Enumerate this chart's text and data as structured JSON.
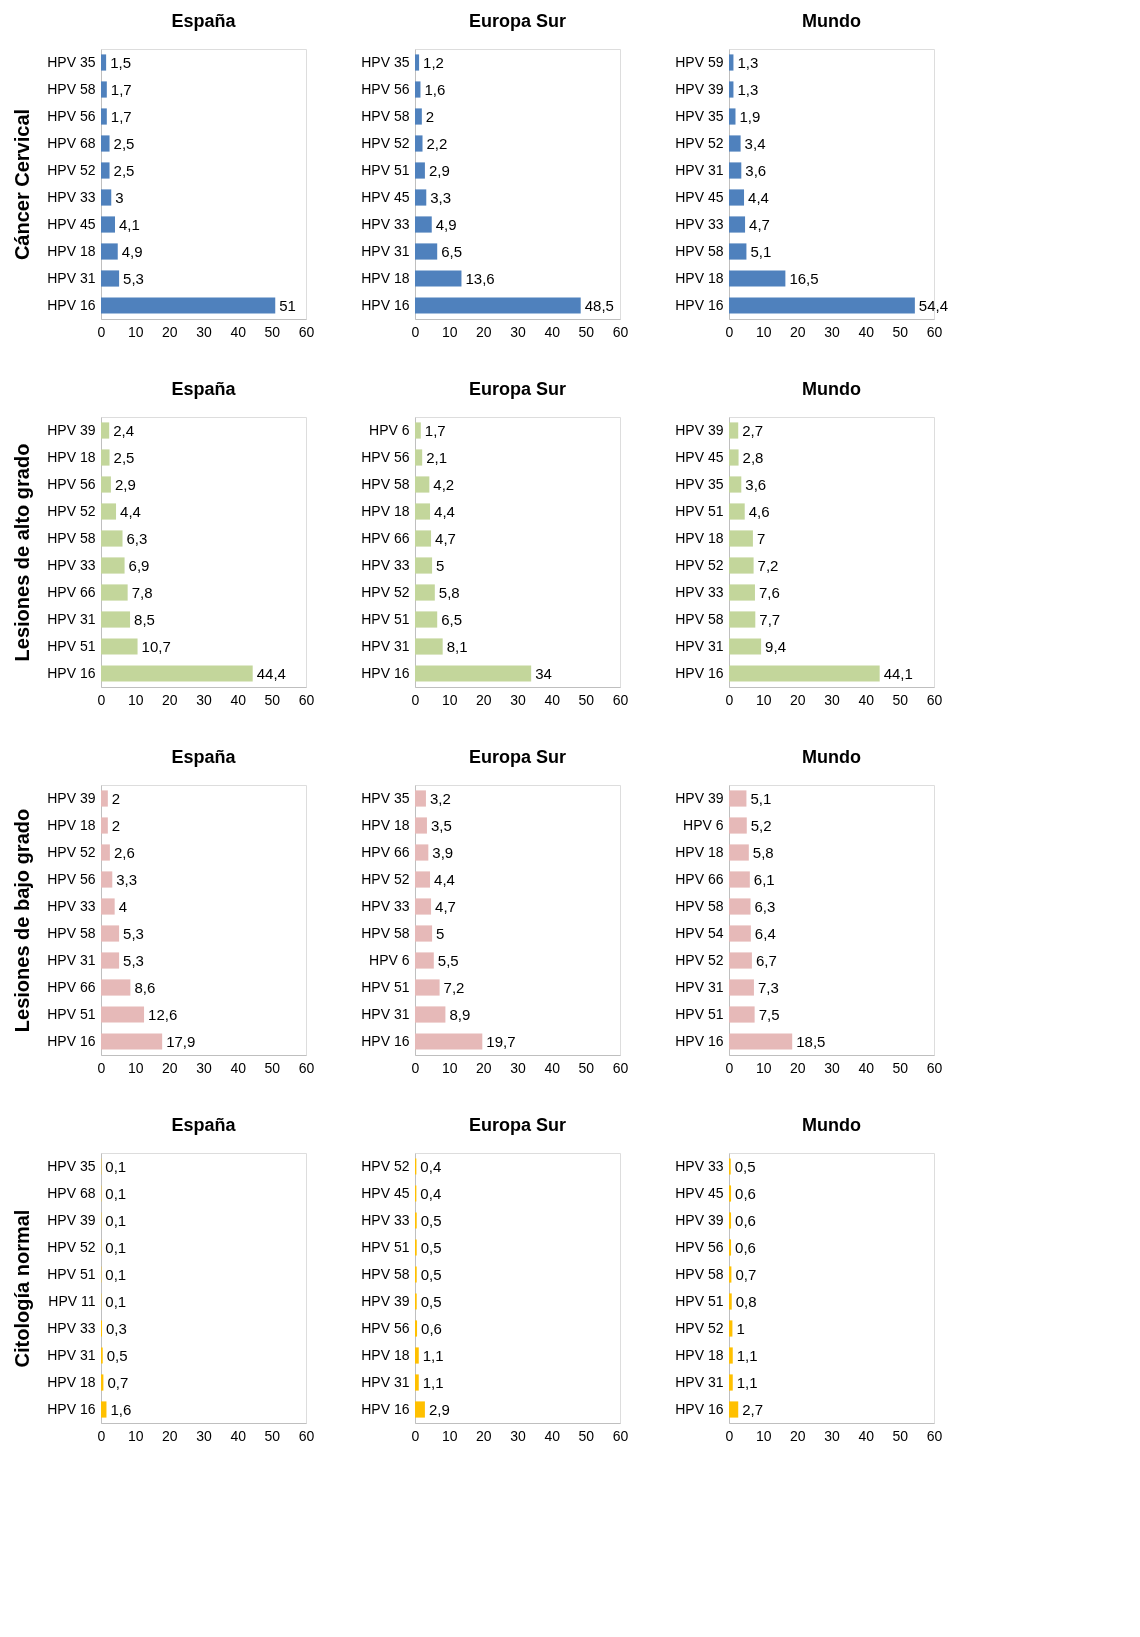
{
  "chart_data": [
    {
      "type": "bar",
      "orientation": "horizontal",
      "title": "España",
      "ylabel": "Cáncer Cervical",
      "color": "#4f81bd",
      "categories": [
        "HPV 35",
        "HPV 58",
        "HPV 56",
        "HPV 68",
        "HPV 52",
        "HPV 33",
        "HPV 45",
        "HPV 18",
        "HPV 31",
        "HPV 16"
      ],
      "values": [
        1.5,
        1.7,
        1.7,
        2.5,
        2.5,
        3,
        4.1,
        4.9,
        5.3,
        51
      ],
      "value_labels": [
        "1,5",
        "1,7",
        "1,7",
        "2,5",
        "2,5",
        "3",
        "4,1",
        "4,9",
        "5,3",
        "51"
      ],
      "xlim": [
        0,
        60
      ],
      "xticks": [
        0,
        10,
        20,
        30,
        40,
        50,
        60
      ],
      "grid": false
    },
    {
      "type": "bar",
      "orientation": "horizontal",
      "title": "Europa Sur",
      "color": "#4f81bd",
      "categories": [
        "HPV 35",
        "HPV 56",
        "HPV 58",
        "HPV 52",
        "HPV 51",
        "HPV 45",
        "HPV 33",
        "HPV 31",
        "HPV 18",
        "HPV 16"
      ],
      "values": [
        1.2,
        1.6,
        2,
        2.2,
        2.9,
        3.3,
        4.9,
        6.5,
        13.6,
        48.5
      ],
      "value_labels": [
        "1,2",
        "1,6",
        "2",
        "2,2",
        "2,9",
        "3,3",
        "4,9",
        "6,5",
        "13,6",
        "48,5"
      ],
      "xlim": [
        0,
        60
      ],
      "xticks": [
        0,
        10,
        20,
        30,
        40,
        50,
        60
      ],
      "grid": false
    },
    {
      "type": "bar",
      "orientation": "horizontal",
      "title": "Mundo",
      "color": "#4f81bd",
      "categories": [
        "HPV 59",
        "HPV 39",
        "HPV 35",
        "HPV 52",
        "HPV 31",
        "HPV 45",
        "HPV 33",
        "HPV 58",
        "HPV 18",
        "HPV 16"
      ],
      "values": [
        1.3,
        1.3,
        1.9,
        3.4,
        3.6,
        4.4,
        4.7,
        5.1,
        16.5,
        54.4
      ],
      "value_labels": [
        "1,3",
        "1,3",
        "1,9",
        "3,4",
        "3,6",
        "4,4",
        "4,7",
        "5,1",
        "16,5",
        "54,4"
      ],
      "xlim": [
        0,
        60
      ],
      "xticks": [
        0,
        10,
        20,
        30,
        40,
        50,
        60
      ],
      "grid": false
    },
    {
      "type": "bar",
      "orientation": "horizontal",
      "title": "España",
      "ylabel": "Lesiones de alto grado",
      "color": "#c3d69b",
      "categories": [
        "HPV 39",
        "HPV 18",
        "HPV 56",
        "HPV 52",
        "HPV 58",
        "HPV 33",
        "HPV 66",
        "HPV 31",
        "HPV 51",
        "HPV 16"
      ],
      "values": [
        2.4,
        2.5,
        2.9,
        4.4,
        6.3,
        6.9,
        7.8,
        8.5,
        10.7,
        44.4
      ],
      "value_labels": [
        "2,4",
        "2,5",
        "2,9",
        "4,4",
        "6,3",
        "6,9",
        "7,8",
        "8,5",
        "10,7",
        "44,4"
      ],
      "xlim": [
        0,
        60
      ],
      "xticks": [
        0,
        10,
        20,
        30,
        40,
        50,
        60
      ],
      "grid": false
    },
    {
      "type": "bar",
      "orientation": "horizontal",
      "title": "Europa Sur",
      "color": "#c3d69b",
      "categories": [
        "HPV 6",
        "HPV 56",
        "HPV 58",
        "HPV 18",
        "HPV 66",
        "HPV 33",
        "HPV 52",
        "HPV 51",
        "HPV 31",
        "HPV 16"
      ],
      "values": [
        1.7,
        2.1,
        4.2,
        4.4,
        4.7,
        5,
        5.8,
        6.5,
        8.1,
        34
      ],
      "value_labels": [
        "1,7",
        "2,1",
        "4,2",
        "4,4",
        "4,7",
        "5",
        "5,8",
        "6,5",
        "8,1",
        "34"
      ],
      "xlim": [
        0,
        60
      ],
      "xticks": [
        0,
        10,
        20,
        30,
        40,
        50,
        60
      ],
      "grid": false
    },
    {
      "type": "bar",
      "orientation": "horizontal",
      "title": "Mundo",
      "color": "#c3d69b",
      "categories": [
        "HPV 39",
        "HPV 45",
        "HPV 35",
        "HPV 51",
        "HPV 18",
        "HPV 52",
        "HPV 33",
        "HPV 58",
        "HPV 31",
        "HPV 16"
      ],
      "values": [
        2.7,
        2.8,
        3.6,
        4.6,
        7,
        7.2,
        7.6,
        7.7,
        9.4,
        44.1
      ],
      "value_labels": [
        "2,7",
        "2,8",
        "3,6",
        "4,6",
        "7",
        "7,2",
        "7,6",
        "7,7",
        "9,4",
        "44,1"
      ],
      "xlim": [
        0,
        60
      ],
      "xticks": [
        0,
        10,
        20,
        30,
        40,
        50,
        60
      ],
      "grid": false
    },
    {
      "type": "bar",
      "orientation": "horizontal",
      "title": "España",
      "ylabel": "Lesiones de bajo grado",
      "color": "#e6b9b8",
      "categories": [
        "HPV 39",
        "HPV 18",
        "HPV 52",
        "HPV 56",
        "HPV 33",
        "HPV 58",
        "HPV 31",
        "HPV 66",
        "HPV 51",
        "HPV 16"
      ],
      "values": [
        2,
        2,
        2.6,
        3.3,
        4,
        5.3,
        5.3,
        8.6,
        12.6,
        17.9
      ],
      "value_labels": [
        "2",
        "2",
        "2,6",
        "3,3",
        "4",
        "5,3",
        "5,3",
        "8,6",
        "12,6",
        "17,9"
      ],
      "xlim": [
        0,
        60
      ],
      "xticks": [
        0,
        10,
        20,
        30,
        40,
        50,
        60
      ],
      "grid": false
    },
    {
      "type": "bar",
      "orientation": "horizontal",
      "title": "Europa Sur",
      "color": "#e6b9b8",
      "categories": [
        "HPV 35",
        "HPV 18",
        "HPV 66",
        "HPV 52",
        "HPV 33",
        "HPV 58",
        "HPV 6",
        "HPV 51",
        "HPV 31",
        "HPV 16"
      ],
      "values": [
        3.2,
        3.5,
        3.9,
        4.4,
        4.7,
        5,
        5.5,
        7.2,
        8.9,
        19.7
      ],
      "value_labels": [
        "3,2",
        "3,5",
        "3,9",
        "4,4",
        "4,7",
        "5",
        "5,5",
        "7,2",
        "8,9",
        "19,7"
      ],
      "xlim": [
        0,
        60
      ],
      "xticks": [
        0,
        10,
        20,
        30,
        40,
        50,
        60
      ],
      "grid": false
    },
    {
      "type": "bar",
      "orientation": "horizontal",
      "title": "Mundo",
      "color": "#e6b9b8",
      "categories": [
        "HPV 39",
        "HPV 6",
        "HPV 18",
        "HPV 66",
        "HPV 58",
        "HPV 54",
        "HPV 52",
        "HPV 31",
        "HPV 51",
        "HPV 16"
      ],
      "values": [
        5.1,
        5.2,
        5.8,
        6.1,
        6.3,
        6.4,
        6.7,
        7.3,
        7.5,
        18.5
      ],
      "value_labels": [
        "5,1",
        "5,2",
        "5,8",
        "6,1",
        "6,3",
        "6,4",
        "6,7",
        "7,3",
        "7,5",
        "18,5"
      ],
      "xlim": [
        0,
        60
      ],
      "xticks": [
        0,
        10,
        20,
        30,
        40,
        50,
        60
      ],
      "grid": false
    },
    {
      "type": "bar",
      "orientation": "horizontal",
      "title": "España",
      "ylabel": "Citología normal",
      "color": "#ffc000",
      "categories": [
        "HPV 35",
        "HPV 68",
        "HPV 39",
        "HPV 52",
        "HPV 51",
        "HPV 11",
        "HPV 33",
        "HPV 31",
        "HPV 18",
        "HPV 16"
      ],
      "values": [
        0.1,
        0.1,
        0.1,
        0.1,
        0.1,
        0.1,
        0.3,
        0.5,
        0.7,
        1.6
      ],
      "value_labels": [
        "0,1",
        "0,1",
        "0,1",
        "0,1",
        "0,1",
        "0,1",
        "0,3",
        "0,5",
        "0,7",
        "1,6"
      ],
      "xlim": [
        0,
        60
      ],
      "xticks": [
        0,
        10,
        20,
        30,
        40,
        50,
        60
      ],
      "grid": false
    },
    {
      "type": "bar",
      "orientation": "horizontal",
      "title": "Europa Sur",
      "color": "#ffc000",
      "categories": [
        "HPV 52",
        "HPV 45",
        "HPV 33",
        "HPV 51",
        "HPV 58",
        "HPV 39",
        "HPV 56",
        "HPV 18",
        "HPV 31",
        "HPV 16"
      ],
      "values": [
        0.4,
        0.4,
        0.5,
        0.5,
        0.5,
        0.5,
        0.6,
        1.1,
        1.1,
        2.9
      ],
      "value_labels": [
        "0,4",
        "0,4",
        "0,5",
        "0,5",
        "0,5",
        "0,5",
        "0,6",
        "1,1",
        "1,1",
        "2,9"
      ],
      "xlim": [
        0,
        60
      ],
      "xticks": [
        0,
        10,
        20,
        30,
        40,
        50,
        60
      ],
      "grid": false
    },
    {
      "type": "bar",
      "orientation": "horizontal",
      "title": "Mundo",
      "color": "#ffc000",
      "categories": [
        "HPV 33",
        "HPV 45",
        "HPV 39",
        "HPV 56",
        "HPV 58",
        "HPV 51",
        "HPV 52",
        "HPV 18",
        "HPV 31",
        "HPV 16"
      ],
      "values": [
        0.5,
        0.6,
        0.6,
        0.6,
        0.7,
        0.8,
        1,
        1.1,
        1.1,
        2.7
      ],
      "value_labels": [
        "0,5",
        "0,6",
        "0,6",
        "0,6",
        "0,7",
        "0,8",
        "1",
        "1,1",
        "1,1",
        "2,7"
      ],
      "xlim": [
        0,
        60
      ],
      "xticks": [
        0,
        10,
        20,
        30,
        40,
        50,
        60
      ],
      "grid": false
    }
  ]
}
